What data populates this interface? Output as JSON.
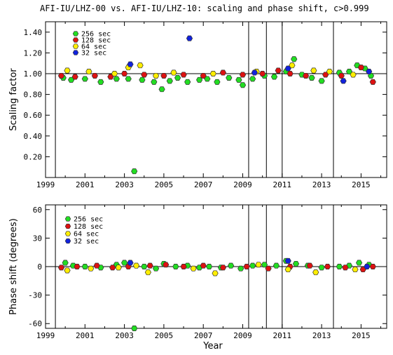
{
  "title": "AFI-IU/LHZ-00 vs. AFI-IU/LHZ-10: scaling and phase shift, c>0.999",
  "xlabel": "Year",
  "colors": {
    "s256": "#22dd22",
    "s128": "#dd1111",
    "s64": "#ffee00",
    "s32": "#1122dd",
    "edge": "#333333"
  },
  "legend": [
    {
      "label": "256 sec",
      "color": "#22dd22"
    },
    {
      "label": "128 sec",
      "color": "#dd1111"
    },
    {
      "label": "64 sec",
      "color": "#ffee00"
    },
    {
      "label": "32 sec",
      "color": "#1122dd"
    }
  ],
  "chart_data": [
    {
      "type": "scatter",
      "ylabel": "Scaling factor",
      "xlim": [
        1999,
        2016.3
      ],
      "ylim": [
        0.0,
        1.5
      ],
      "xticks": [
        1999,
        2001,
        2003,
        2005,
        2007,
        2009,
        2011,
        2013,
        2015
      ],
      "yticks": [
        0.2,
        0.4,
        0.6,
        0.8,
        1.0,
        1.2,
        1.4
      ],
      "ytick_labels": [
        "0.20",
        "0.40",
        "0.60",
        "0.80",
        "1.00",
        "1.20",
        "1.40"
      ],
      "vlines": [
        1999.5,
        2009.3,
        2010.2,
        2011.0,
        2013.6
      ],
      "hline": 1.0,
      "legend_position": "top-left",
      "series": [
        {
          "name": "256 sec",
          "color": "#22dd22",
          "points": [
            [
              1999.9,
              0.96
            ],
            [
              2000.3,
              0.94
            ],
            [
              2001.0,
              0.95
            ],
            [
              2001.8,
              0.92
            ],
            [
              2002.6,
              0.95
            ],
            [
              2003.2,
              0.95
            ],
            [
              2003.5,
              0.06
            ],
            [
              2003.9,
              0.94
            ],
            [
              2004.5,
              0.92
            ],
            [
              2004.9,
              0.85
            ],
            [
              2005.3,
              0.93
            ],
            [
              2005.7,
              0.96
            ],
            [
              2006.2,
              0.92
            ],
            [
              2006.8,
              0.94
            ],
            [
              2007.2,
              0.95
            ],
            [
              2007.7,
              0.92
            ],
            [
              2008.3,
              0.96
            ],
            [
              2008.8,
              0.94
            ],
            [
              2009.0,
              0.89
            ],
            [
              2009.5,
              0.95
            ],
            [
              2010.1,
              0.98
            ],
            [
              2010.6,
              0.97
            ],
            [
              2011.2,
              1.02
            ],
            [
              2011.6,
              1.14
            ],
            [
              2012.0,
              0.99
            ],
            [
              2012.5,
              0.96
            ],
            [
              2013.0,
              0.93
            ],
            [
              2013.9,
              1.01
            ],
            [
              2014.4,
              1.02
            ],
            [
              2014.8,
              1.08
            ],
            [
              2015.2,
              1.05
            ],
            [
              2015.5,
              0.98
            ]
          ]
        },
        {
          "name": "128 sec",
          "color": "#dd1111",
          "points": [
            [
              1999.8,
              0.98
            ],
            [
              2000.5,
              0.97
            ],
            [
              2001.5,
              0.98
            ],
            [
              2002.3,
              0.97
            ],
            [
              2003.0,
              1.0
            ],
            [
              2004.0,
              0.99
            ],
            [
              2005.0,
              0.98
            ],
            [
              2006.0,
              0.99
            ],
            [
              2007.0,
              0.98
            ],
            [
              2008.0,
              1.01
            ],
            [
              2009.0,
              0.99
            ],
            [
              2010.0,
              1.0
            ],
            [
              2010.8,
              1.03
            ],
            [
              2011.4,
              1.0
            ],
            [
              2012.2,
              0.98
            ],
            [
              2013.2,
              0.99
            ],
            [
              2014.0,
              0.98
            ],
            [
              2015.0,
              1.06
            ],
            [
              2015.6,
              0.92
            ]
          ]
        },
        {
          "name": "64 sec",
          "color": "#ffee00",
          "points": [
            [
              2000.1,
              1.03
            ],
            [
              2001.2,
              1.02
            ],
            [
              2002.5,
              1.0
            ],
            [
              2003.2,
              1.06
            ],
            [
              2003.8,
              1.08
            ],
            [
              2004.6,
              0.98
            ],
            [
              2005.5,
              1.01
            ],
            [
              2007.5,
              1.0
            ],
            [
              2009.7,
              1.02
            ],
            [
              2011.5,
              1.08
            ],
            [
              2012.6,
              1.03
            ],
            [
              2013.4,
              1.02
            ],
            [
              2014.6,
              0.99
            ]
          ]
        },
        {
          "name": "32 sec",
          "color": "#1122dd",
          "points": [
            [
              2003.3,
              1.09
            ],
            [
              2006.3,
              1.34
            ],
            [
              2009.6,
              1.01
            ],
            [
              2011.3,
              1.05
            ],
            [
              2014.1,
              0.93
            ],
            [
              2015.4,
              1.02
            ]
          ]
        }
      ]
    },
    {
      "type": "scatter",
      "ylabel": "Phase shift (degrees)",
      "xlim": [
        1999,
        2016.3
      ],
      "ylim": [
        -65,
        65
      ],
      "xticks": [
        1999,
        2001,
        2003,
        2005,
        2007,
        2009,
        2011,
        2013,
        2015
      ],
      "yticks": [
        -60,
        -30,
        0,
        30,
        60
      ],
      "ytick_labels": [
        "-60",
        "-30",
        "0",
        "30",
        "60"
      ],
      "vlines": [
        1999.5,
        2009.3,
        2010.2,
        2011.0,
        2013.6
      ],
      "hline": 0,
      "legend_position": "top-left",
      "series": [
        {
          "name": "256 sec",
          "color": "#22dd22",
          "points": [
            [
              2000.0,
              4
            ],
            [
              2000.4,
              1
            ],
            [
              2001.0,
              0
            ],
            [
              2001.8,
              -1
            ],
            [
              2002.6,
              2
            ],
            [
              2003.0,
              4
            ],
            [
              2003.5,
              -65
            ],
            [
              2004.0,
              0
            ],
            [
              2004.6,
              -2
            ],
            [
              2005.0,
              3
            ],
            [
              2005.6,
              0
            ],
            [
              2006.2,
              1
            ],
            [
              2006.8,
              -1
            ],
            [
              2007.3,
              0
            ],
            [
              2007.9,
              -1
            ],
            [
              2008.4,
              1
            ],
            [
              2008.9,
              -2
            ],
            [
              2009.5,
              1
            ],
            [
              2010.1,
              2
            ],
            [
              2010.7,
              1
            ],
            [
              2011.2,
              6
            ],
            [
              2011.7,
              3
            ],
            [
              2012.3,
              1
            ],
            [
              2013.0,
              -1
            ],
            [
              2013.9,
              0
            ],
            [
              2014.4,
              1
            ],
            [
              2014.9,
              4
            ],
            [
              2015.4,
              2
            ]
          ]
        },
        {
          "name": "128 sec",
          "color": "#dd1111",
          "points": [
            [
              1999.8,
              -1
            ],
            [
              2000.6,
              0
            ],
            [
              2001.6,
              1
            ],
            [
              2002.4,
              -1
            ],
            [
              2003.2,
              0
            ],
            [
              2004.3,
              1
            ],
            [
              2005.1,
              2
            ],
            [
              2006.0,
              0
            ],
            [
              2007.0,
              1
            ],
            [
              2008.0,
              -1
            ],
            [
              2009.2,
              0
            ],
            [
              2010.3,
              -2
            ],
            [
              2011.4,
              0
            ],
            [
              2012.4,
              1
            ],
            [
              2013.3,
              0
            ],
            [
              2014.2,
              -1
            ],
            [
              2015.1,
              -3
            ],
            [
              2015.6,
              0
            ]
          ]
        },
        {
          "name": "64 sec",
          "color": "#ffee00",
          "points": [
            [
              2000.1,
              -4
            ],
            [
              2001.3,
              -2
            ],
            [
              2002.7,
              -1
            ],
            [
              2003.6,
              1
            ],
            [
              2004.2,
              -6
            ],
            [
              2006.5,
              -2
            ],
            [
              2007.6,
              -7
            ],
            [
              2009.8,
              2
            ],
            [
              2011.3,
              -3
            ],
            [
              2012.7,
              -6
            ],
            [
              2014.7,
              -3
            ]
          ]
        },
        {
          "name": "32 sec",
          "color": "#1122dd",
          "points": [
            [
              2003.3,
              4
            ],
            [
              2011.3,
              6
            ],
            [
              2015.3,
              0
            ]
          ]
        }
      ]
    }
  ]
}
